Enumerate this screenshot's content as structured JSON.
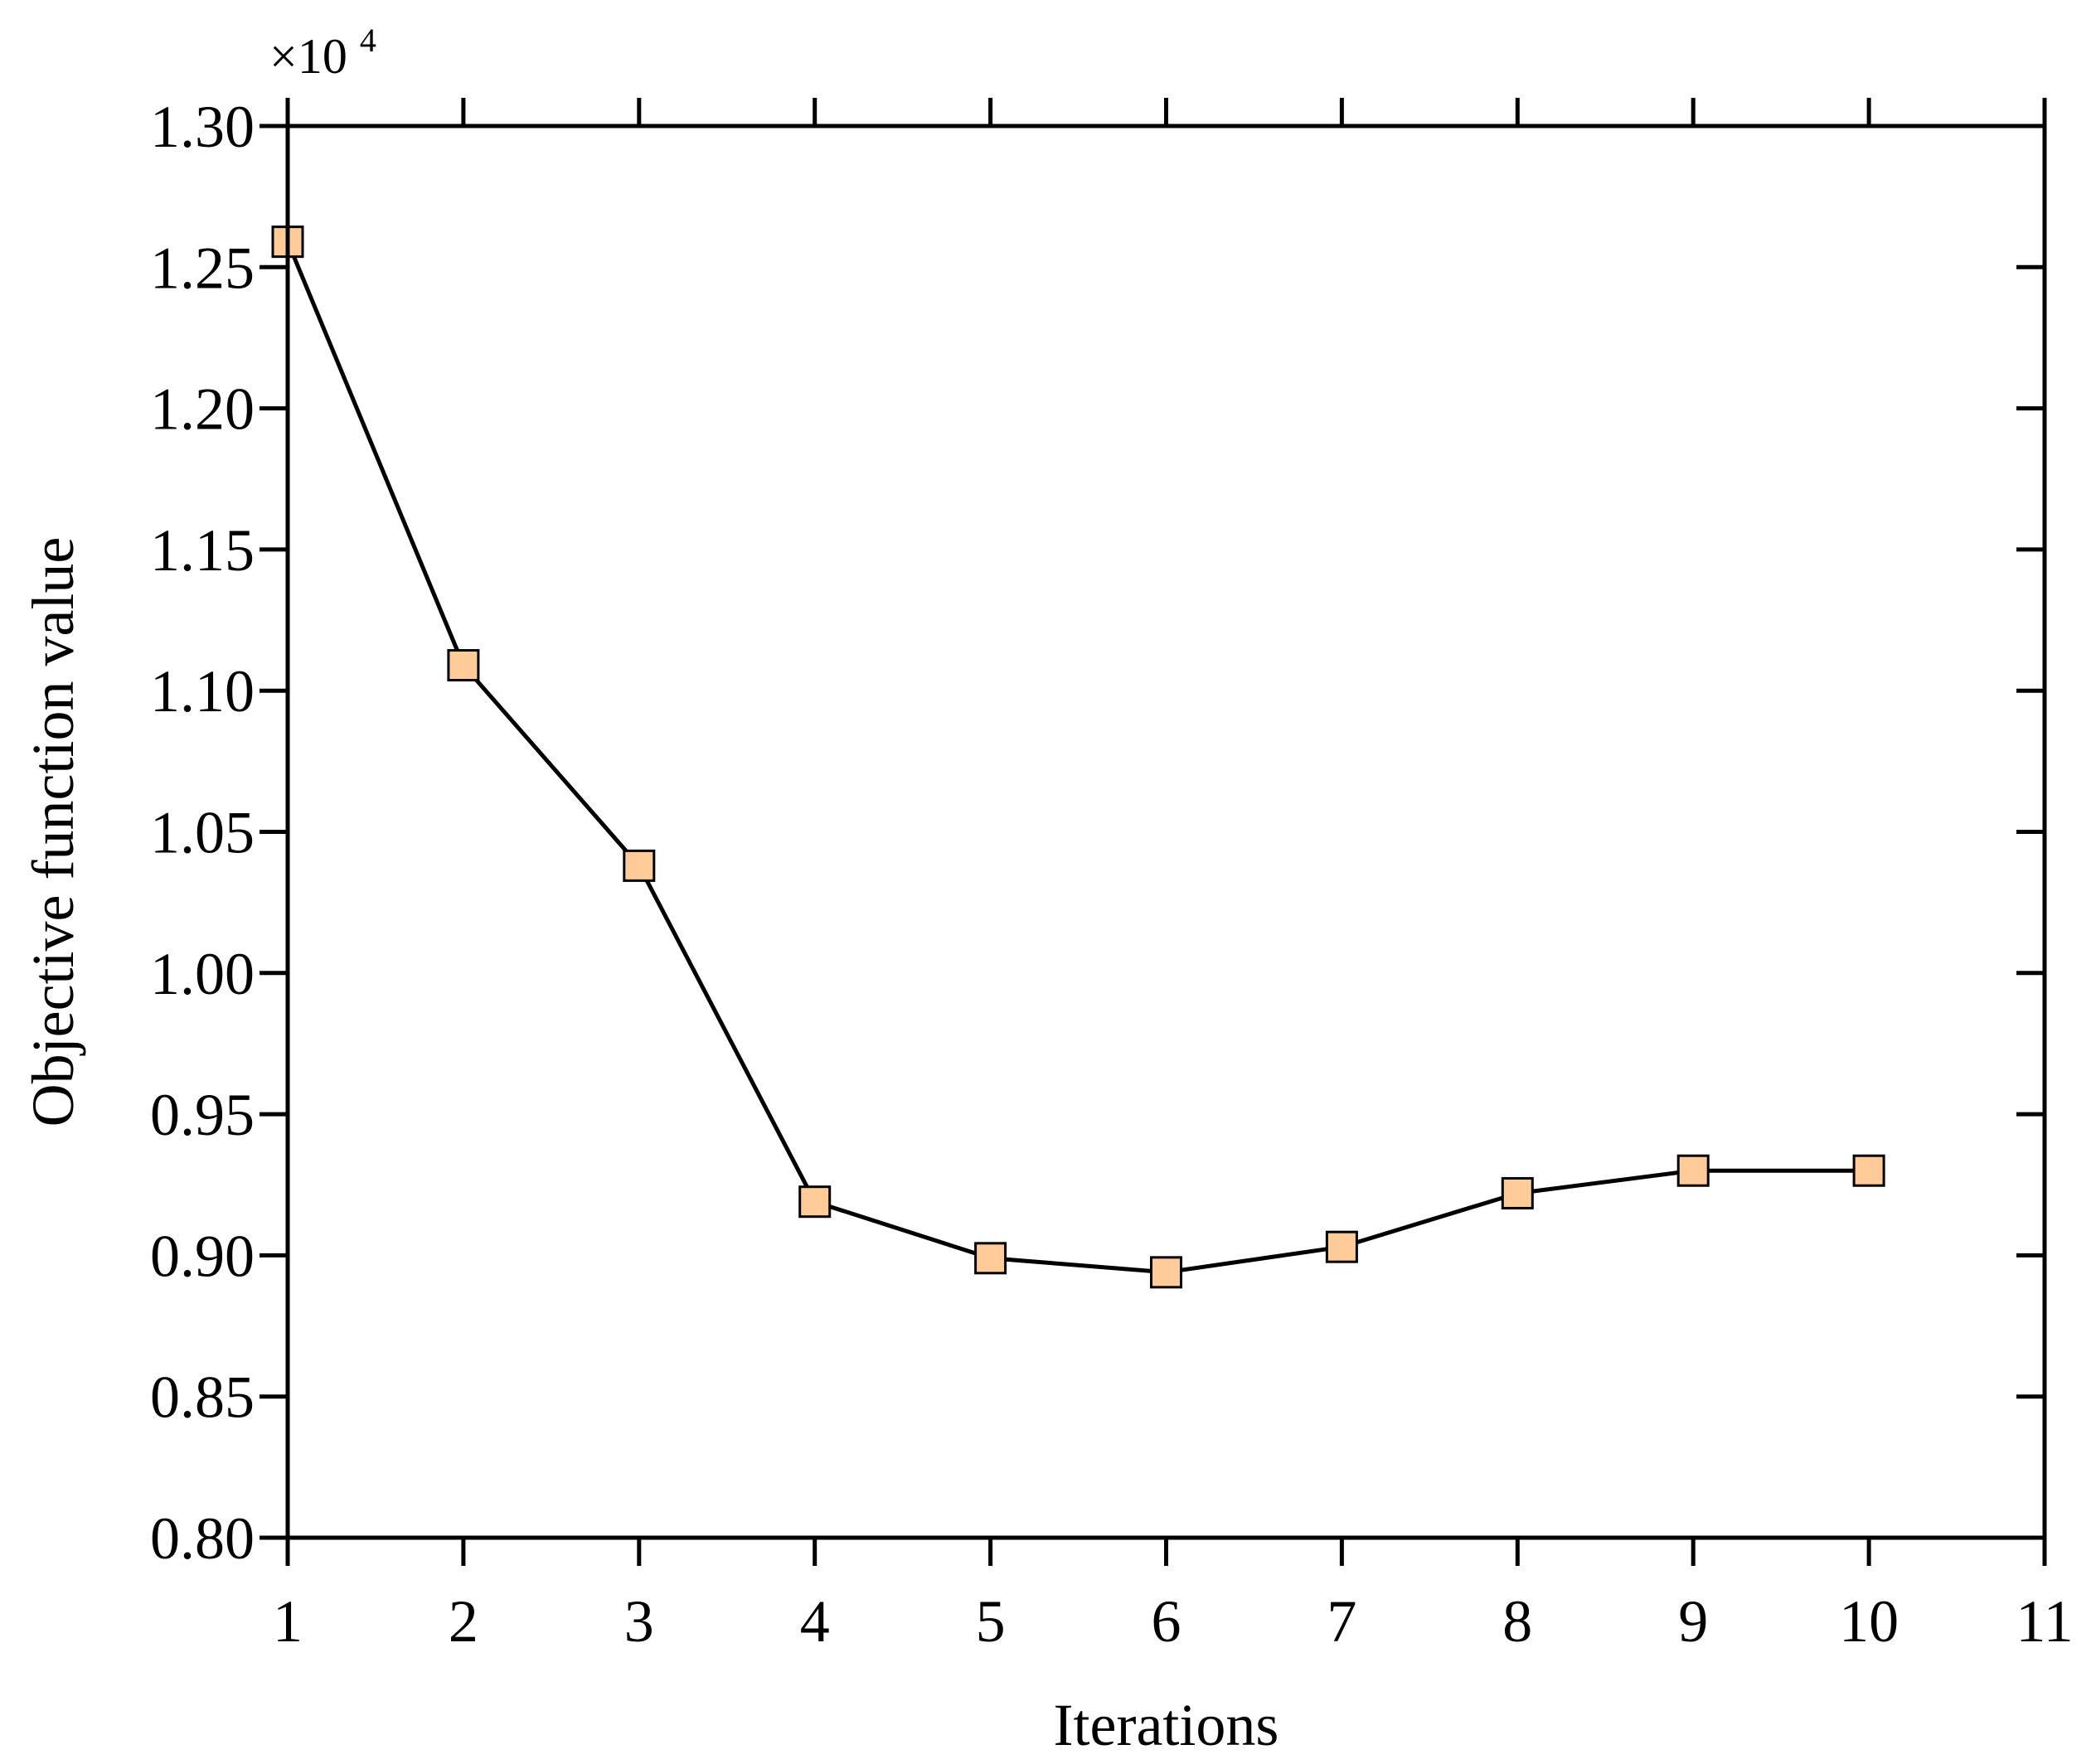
{
  "chart_data": {
    "type": "line",
    "title": "",
    "xlabel": "Iterations",
    "ylabel": "Objective function value",
    "y_multiplier": {
      "base": "×10",
      "exponent": "4"
    },
    "xlim": [
      1,
      11
    ],
    "ylim": [
      0.8,
      1.3
    ],
    "x_ticks": [
      1,
      2,
      3,
      4,
      5,
      6,
      7,
      8,
      9,
      10,
      11
    ],
    "x_tick_labels": [
      "1",
      "2",
      "3",
      "4",
      "5",
      "6",
      "7",
      "8",
      "9",
      "10",
      "11"
    ],
    "y_ticks": [
      0.8,
      0.85,
      0.9,
      0.95,
      1.0,
      1.05,
      1.1,
      1.15,
      1.2,
      1.25,
      1.3
    ],
    "y_tick_labels": [
      "0.80",
      "0.85",
      "0.90",
      "0.95",
      "1.00",
      "1.05",
      "1.10",
      "1.15",
      "1.20",
      "1.25",
      "1.30"
    ],
    "grid": false,
    "legend": "none",
    "series": [
      {
        "x": [
          1,
          2,
          3,
          4,
          5,
          6,
          7,
          8,
          9,
          10
        ],
        "y": [
          1.259,
          1.109,
          1.038,
          0.919,
          0.899,
          0.894,
          0.903,
          0.922,
          0.93,
          0.93
        ],
        "marker": "square",
        "marker_color": "#FFCC99",
        "line_color": "#000000"
      }
    ]
  }
}
